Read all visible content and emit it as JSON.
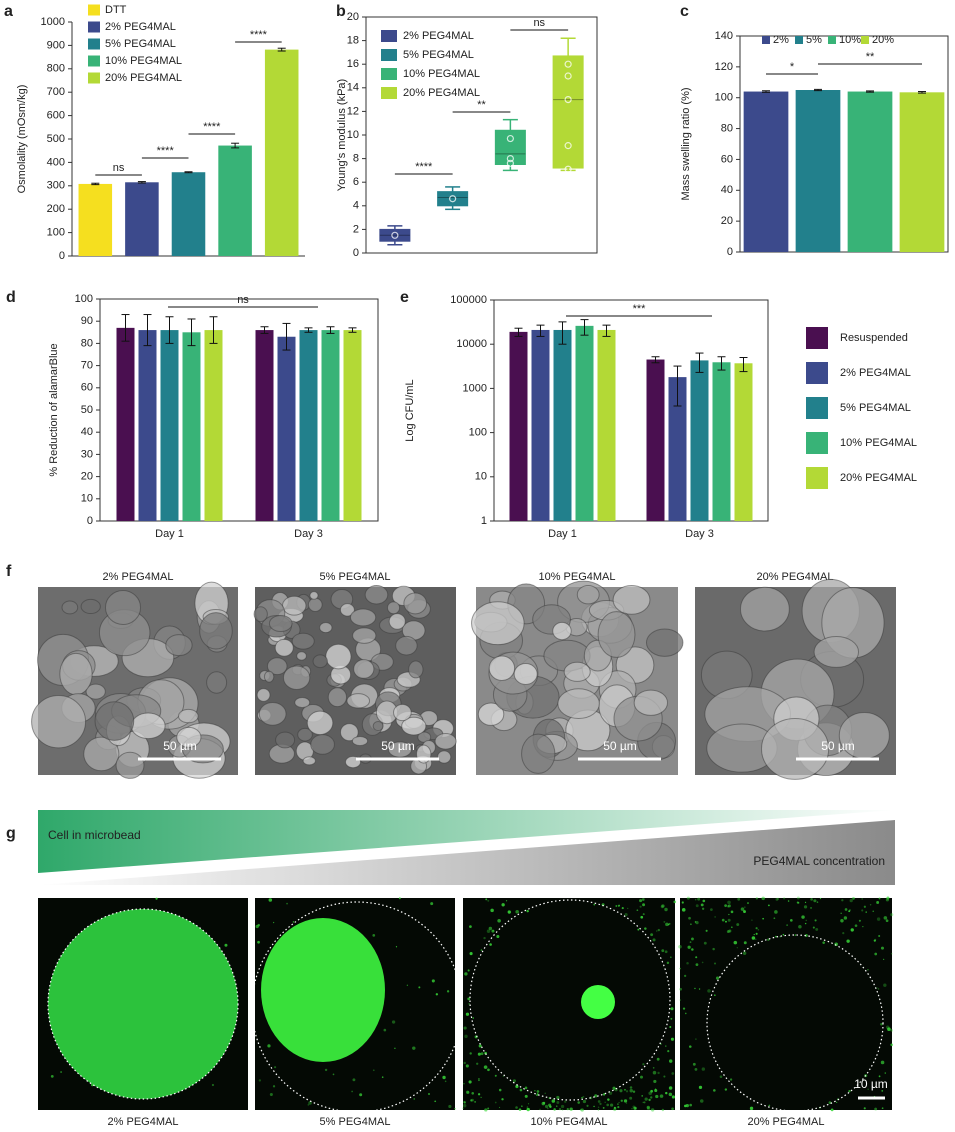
{
  "chart_data": [
    {
      "panel": "a",
      "type": "bar",
      "ylabel": "Osmolality (mOsm/kg)",
      "ylim": [
        0,
        1000
      ],
      "yticks": [
        0,
        100,
        200,
        300,
        400,
        500,
        600,
        700,
        800,
        900,
        1000
      ],
      "legend": "upper left",
      "series": [
        {
          "name": "DTT",
          "color": "#f5df1f",
          "values": [
            308
          ],
          "errors": [
            3
          ]
        },
        {
          "name": "2% PEG4MAL",
          "color": "#3c4a8c",
          "values": [
            315
          ],
          "errors": [
            3
          ]
        },
        {
          "name": "5% PEG4MAL",
          "color": "#22808c",
          "values": [
            358
          ],
          "errors": [
            2
          ]
        },
        {
          "name": "10% PEG4MAL",
          "color": "#38b377",
          "values": [
            472
          ],
          "errors": [
            10
          ]
        },
        {
          "name": "20% PEG4MAL",
          "color": "#b3d936",
          "values": [
            882
          ],
          "errors": [
            6
          ]
        }
      ],
      "annotations": [
        "ns",
        "****",
        "****",
        "****"
      ]
    },
    {
      "panel": "b",
      "type": "box",
      "ylabel": "Young's modulus (kPa)",
      "ylim": [
        0,
        20
      ],
      "yticks": [
        0,
        2,
        4,
        6,
        8,
        10,
        12,
        14,
        16,
        18,
        20
      ],
      "legend": "upper left",
      "series": [
        {
          "name": "2% PEG4MAL",
          "color": "#3c4a8c",
          "min": 0.7,
          "q1": 1.0,
          "median": 1.5,
          "q3": 2.0,
          "max": 2.3,
          "points": [
            1.5
          ]
        },
        {
          "name": "5% PEG4MAL",
          "color": "#22808c",
          "min": 3.7,
          "q1": 4.0,
          "median": 4.7,
          "q3": 5.2,
          "max": 5.6,
          "points": [
            4.6
          ]
        },
        {
          "name": "10% PEG4MAL",
          "color": "#38b377",
          "min": 7.0,
          "q1": 7.5,
          "median": 8.4,
          "q3": 10.4,
          "max": 11.3,
          "points": [
            9.7,
            8.0,
            7.6
          ]
        },
        {
          "name": "20% PEG4MAL",
          "color": "#b3d936",
          "min": 7.0,
          "q1": 7.2,
          "median": 13.0,
          "q3": 16.7,
          "max": 18.2,
          "points": [
            16.0,
            15.0,
            13.0,
            9.1,
            7.1
          ]
        }
      ],
      "annotations": [
        "****",
        "**",
        "ns"
      ]
    },
    {
      "panel": "c",
      "type": "bar",
      "ylabel": "Mass swelling ratio (%)",
      "ylim": [
        0,
        140
      ],
      "yticks": [
        0,
        20,
        40,
        60,
        80,
        100,
        120,
        140
      ],
      "legend": "upper center",
      "series": [
        {
          "name": "2%",
          "color": "#3c4a8c",
          "values": [
            104
          ],
          "errors": [
            0.5
          ]
        },
        {
          "name": "5%",
          "color": "#22808c",
          "values": [
            105
          ],
          "errors": [
            0.4
          ]
        },
        {
          "name": "10%",
          "color": "#38b377",
          "values": [
            104
          ],
          "errors": [
            0.4
          ]
        },
        {
          "name": "20%",
          "color": "#b3d936",
          "values": [
            103.5
          ],
          "errors": [
            0.5
          ]
        }
      ],
      "annotations": [
        "*",
        "**"
      ]
    },
    {
      "panel": "d",
      "type": "bar",
      "ylabel": "% Reduction of alamarBlue",
      "ylim": [
        0,
        100
      ],
      "yticks": [
        0,
        10,
        20,
        30,
        40,
        50,
        60,
        70,
        80,
        90,
        100
      ],
      "categories": [
        "Day 1",
        "Day 3"
      ],
      "series": [
        {
          "color": "#4a0f50",
          "values": [
            87,
            86
          ],
          "errors": [
            6,
            1.5
          ]
        },
        {
          "color": "#3c4a8c",
          "values": [
            86,
            83
          ],
          "errors": [
            7,
            6
          ]
        },
        {
          "color": "#22808c",
          "values": [
            86,
            86
          ],
          "errors": [
            6,
            1
          ]
        },
        {
          "color": "#38b377",
          "values": [
            85,
            86
          ],
          "errors": [
            6,
            1.5
          ]
        },
        {
          "color": "#b3d936",
          "values": [
            86,
            86
          ],
          "errors": [
            6,
            1
          ]
        }
      ],
      "annotations": [
        "ns"
      ]
    },
    {
      "panel": "e",
      "type": "bar",
      "log": true,
      "ylabel": "Log CFU/mL",
      "ylim": [
        1,
        100000
      ],
      "yticks": [
        1,
        10,
        100,
        1000,
        10000,
        100000
      ],
      "legend": "right",
      "categories": [
        "Day 1",
        "Day 3"
      ],
      "series": [
        {
          "name": "Resuspended",
          "color": "#4a0f50",
          "values": [
            19000,
            4500
          ],
          "errors": [
            4000,
            700
          ]
        },
        {
          "name": "2% PEG4MAL",
          "color": "#3c4a8c",
          "values": [
            21000,
            1800
          ],
          "errors": [
            6000,
            1400
          ]
        },
        {
          "name": "5% PEG4MAL",
          "color": "#22808c",
          "values": [
            21000,
            4300
          ],
          "errors": [
            11000,
            2000
          ]
        },
        {
          "name": "10% PEG4MAL",
          "color": "#38b377",
          "values": [
            26000,
            3900
          ],
          "errors": [
            10000,
            1300
          ]
        },
        {
          "name": "20% PEG4MAL",
          "color": "#b3d936",
          "values": [
            21000,
            3700
          ],
          "errors": [
            6000,
            1300
          ]
        }
      ],
      "annotations": [
        "***"
      ]
    }
  ],
  "figure_f": {
    "panel": "f",
    "scale_bar": "50 µm",
    "images": [
      {
        "label": "2% PEG4MAL"
      },
      {
        "label": "5% PEG4MAL"
      },
      {
        "label": "10% PEG4MAL"
      },
      {
        "label": "20% PEG4MAL"
      }
    ]
  },
  "figure_g": {
    "panel": "g",
    "gradient_labels": [
      "Cell in microbead",
      "PEG4MAL concentration"
    ],
    "scale_bar": "10 µm",
    "images": [
      {
        "label": "2% PEG4MAL"
      },
      {
        "label": "5% PEG4MAL"
      },
      {
        "label": "10% PEG4MAL"
      },
      {
        "label": "20% PEG4MAL"
      }
    ]
  }
}
